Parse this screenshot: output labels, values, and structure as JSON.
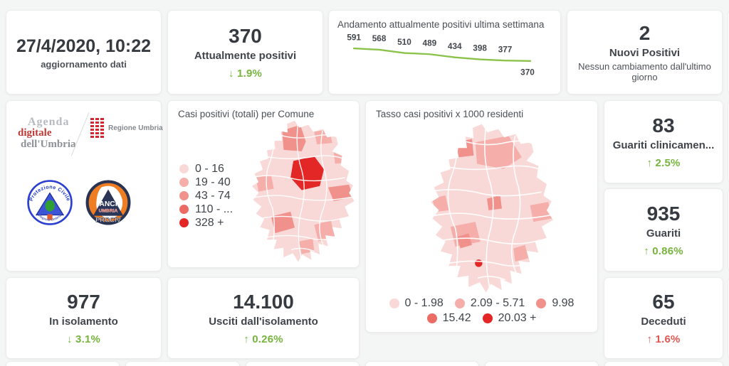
{
  "kpi_date": {
    "value": "27/4/2020, 10:22",
    "label": "aggiornamento dati"
  },
  "kpi_attualmente": {
    "value": "370",
    "label": "Attualmente positivi",
    "arrow": "↓",
    "delta": "1.9%"
  },
  "chart_data": {
    "type": "line",
    "title": "Andamento attualmente positivi ultima settimana",
    "values": [
      591,
      568,
      510,
      489,
      434,
      398,
      377,
      370
    ],
    "color": "#8bc34a",
    "ylim": [
      370,
      591
    ],
    "grid": false,
    "legend_position": "none",
    "data_labels": true
  },
  "kpi_nuovi": {
    "value": "2",
    "label": "Nuovi Positivi",
    "sublabel": "Nessun cambiamento dall'ultimo giorno"
  },
  "logos": {
    "agenda_line1": "Agenda",
    "agenda_line2": "digitale",
    "agenda_line3": "dell'Umbria",
    "regione_label": "Regione Umbria",
    "protezione_top": "Protezione Civile",
    "protezione_bottom": "Regione Umbria",
    "anci_line1": "ANCI",
    "anci_line2": "UMBRIA",
    "anci_line3": "PROCIV"
  },
  "map_comuni": {
    "title": "Casi positivi (totali) per Comune",
    "legend": [
      {
        "label": "0 - 16",
        "color": "#f9d9d7"
      },
      {
        "label": "19 - 40",
        "color": "#f5aeaa"
      },
      {
        "label": "43 - 74",
        "color": "#f0918c"
      },
      {
        "label": "110 - ...",
        "color": "#ec6b64"
      },
      {
        "label": "328 +",
        "color": "#e32626"
      }
    ]
  },
  "map_tasso": {
    "title": "Tasso casi positivi x 1000 residenti",
    "legend": [
      {
        "label": "0 - 1.98",
        "color": "#f9d9d7"
      },
      {
        "label": "2.09 - 5.71",
        "color": "#f5aeaa"
      },
      {
        "label": "9.98",
        "color": "#f0918c"
      },
      {
        "label": "15.42",
        "color": "#ec6b64"
      },
      {
        "label": "20.03 +",
        "color": "#e32626"
      }
    ]
  },
  "kpi_guariti_clin": {
    "value": "83",
    "label": "Guariti clinicamen...",
    "arrow": "↑",
    "delta": "2.5%"
  },
  "kpi_guariti": {
    "value": "935",
    "label": "Guariti",
    "arrow": "↑",
    "delta": "0.86%"
  },
  "kpi_isolamento": {
    "value": "977",
    "label": "In isolamento",
    "arrow": "↓",
    "delta": "3.1%"
  },
  "kpi_usciti": {
    "value": "14.100",
    "label": "Usciti dall'isolamento",
    "arrow": "↑",
    "delta": "0.26%"
  },
  "kpi_deceduti": {
    "value": "65",
    "label": "Deceduti",
    "arrow": "↑",
    "delta": "1.6%"
  },
  "theme": {
    "green": "#76b43e",
    "red": "#e15751",
    "line_green": "#8bc34a",
    "dark_text": "#363b41",
    "background": "#f4f5f5"
  }
}
